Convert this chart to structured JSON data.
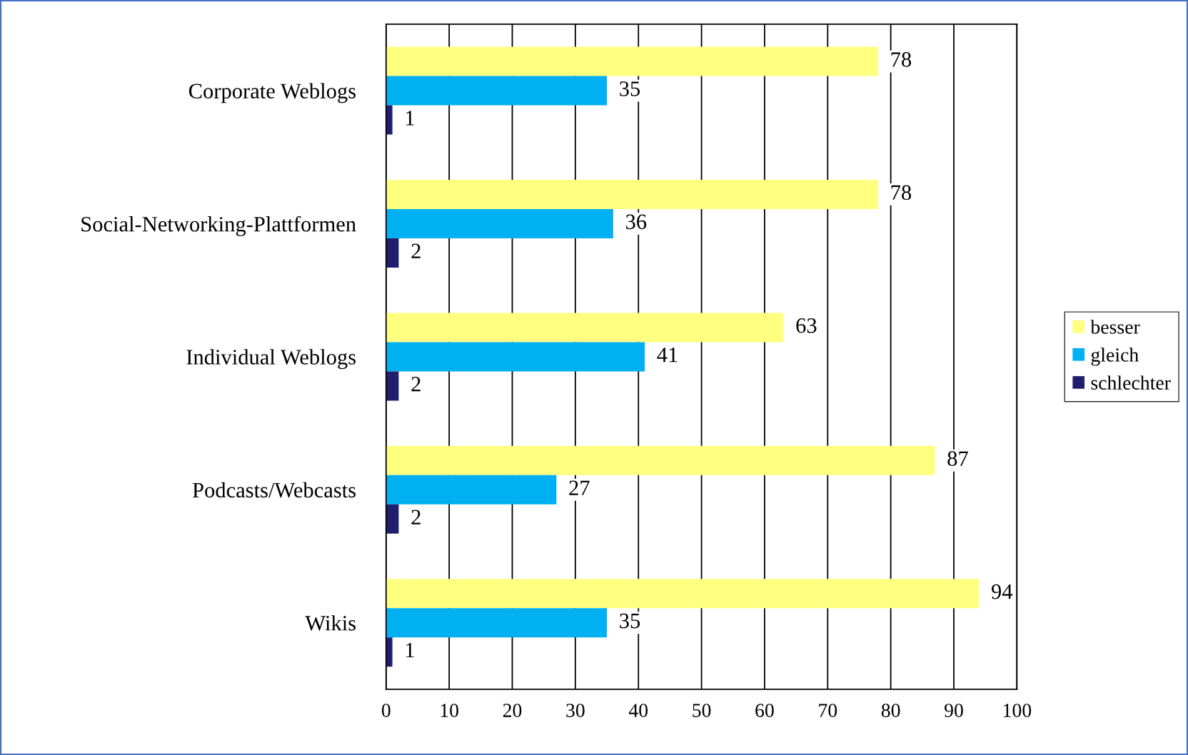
{
  "chart_data": {
    "type": "bar",
    "orientation": "horizontal",
    "categories": [
      "Corporate Weblogs",
      "Social-Networking-Plattformen",
      "Individual Weblogs",
      "Podcasts/Webcasts",
      "Wikis"
    ],
    "series": [
      {
        "name": "besser",
        "color": "#ffff80",
        "values": [
          78,
          78,
          63,
          87,
          94
        ]
      },
      {
        "name": "gleich",
        "color": "#00b0f0",
        "values": [
          35,
          36,
          41,
          27,
          35
        ]
      },
      {
        "name": "schlechter",
        "color": "#1f1f6e",
        "values": [
          1,
          2,
          2,
          2,
          1
        ]
      }
    ],
    "xlim": [
      0,
      100
    ],
    "xticks": [
      0,
      10,
      20,
      30,
      40,
      50,
      60,
      70,
      80,
      90,
      100
    ],
    "grid": "x",
    "legend": "right",
    "data_labels": true
  }
}
